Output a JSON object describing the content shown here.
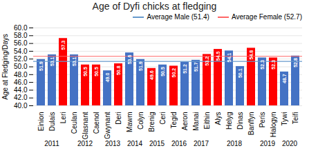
{
  "chart_data": {
    "type": "bar",
    "title": "Age of Dyfi chicks at fledging",
    "ylabel": "Age at Fledging/Days",
    "categories": [
      "Einion",
      "Dulais",
      "Leri",
      "Ceulan",
      "Glasnant",
      "Caenol",
      "Gwynant",
      "Deri",
      "Mawm",
      "Colyn",
      "Brenig",
      "Ceri",
      "Tegid",
      "Aeron",
      "Manai",
      "Eithin",
      "Alys",
      "Helyg",
      "Dinas",
      "Banffyn",
      "Peris",
      "Halogyn",
      "Tywi",
      "Teifi"
    ],
    "groups": [
      "2011",
      "2011",
      "2011",
      "2012",
      "2012",
      "2012",
      "2013",
      "2013",
      "2014",
      "2014",
      "2015",
      "2015",
      "2016",
      "2016",
      "2017",
      "2017",
      "2018",
      "2018",
      "2018",
      "2018",
      "2019",
      "2019",
      "2020",
      "2020"
    ],
    "values": [
      51.9,
      53.1,
      57.3,
      53.1,
      50.5,
      50.5,
      49.0,
      50.8,
      53.6,
      51.9,
      49.6,
      50.5,
      50.2,
      51.2,
      51.7,
      53.2,
      54.5,
      54.1,
      50.1,
      54.8,
      52.3,
      52.3,
      48.7,
      52.8
    ],
    "value_labels": [
      "51.9",
      "53.1",
      "57.3",
      "53.1",
      "50.5",
      "50.5",
      "49.0",
      "50.8",
      "53.6",
      "51.9",
      "49.6",
      "50.5",
      "50.2",
      "51.2",
      "51.7",
      "53.2",
      "54.5",
      "54.1",
      "50.1",
      "54.8",
      "52.3",
      "52.3",
      "48.7",
      "52.8"
    ],
    "colors": [
      "#4472C4",
      "#4472C4",
      "#FF0000",
      "#4472C4",
      "#FF0000",
      "#FF0000",
      "#4472C4",
      "#FF0000",
      "#4472C4",
      "#4472C4",
      "#FF0000",
      "#4472C4",
      "#FF0000",
      "#4472C4",
      "#4472C4",
      "#FF0000",
      "#FF0000",
      "#4472C4",
      "#4472C4",
      "#FF0000",
      "#4472C4",
      "#FF0000",
      "#4472C4",
      "#4472C4"
    ],
    "data_labels": true,
    "lines": [
      {
        "name": "Average Male (51.4)",
        "value": 51.4,
        "color": "#6699CC"
      },
      {
        "name": "Average Female (52.7)",
        "value": 52.7,
        "color": "#FF6666"
      }
    ],
    "legend": "upper right",
    "ylim": [
      40.0,
      60.0
    ],
    "yticks": [
      {
        "value": 40,
        "label": "40.0"
      },
      {
        "value": 42,
        "label": "42.0"
      },
      {
        "value": 44,
        "label": "44.0"
      },
      {
        "value": 46,
        "label": "46.0"
      },
      {
        "value": 48,
        "label": "48.0"
      },
      {
        "value": 50,
        "label": "50.0"
      },
      {
        "value": 52,
        "label": "52.0"
      },
      {
        "value": 54,
        "label": "54.0"
      },
      {
        "value": 56,
        "label": "56.0"
      },
      {
        "value": 58,
        "label": "58.0"
      },
      {
        "value": 60,
        "label": "60.0"
      }
    ],
    "grid": true
  }
}
